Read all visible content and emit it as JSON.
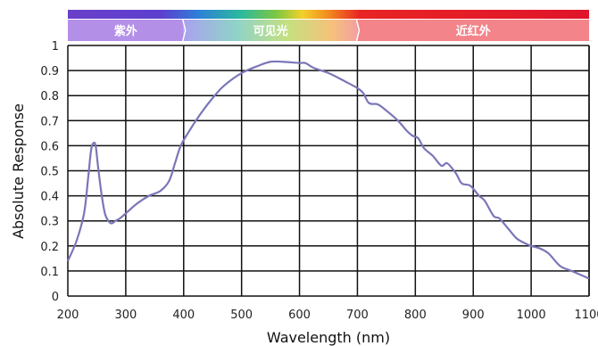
{
  "chart_data": {
    "type": "line",
    "xlabel": "Wavelength (nm)",
    "ylabel": "Absolute Response",
    "xlim": [
      200,
      1100
    ],
    "ylim": [
      0,
      1
    ],
    "x_ticks": [
      "200",
      "300",
      "400",
      "500",
      "600",
      "700",
      "800",
      "900",
      "1000",
      "1100"
    ],
    "y_ticks": [
      "0",
      "0.1",
      "0.2",
      "0.3",
      "0.4",
      "0.5",
      "0.6",
      "0.7",
      "0.8",
      "0.9",
      "1"
    ],
    "grid": true,
    "bands": [
      {
        "label": "紫外",
        "from": 200,
        "to": 400,
        "color": "#b48fe8"
      },
      {
        "label": "可见光",
        "from": 400,
        "to": 700,
        "color": "#9fd29a"
      },
      {
        "label": "近红外",
        "from": 700,
        "to": 1100,
        "color": "#f2848a"
      }
    ],
    "series": [
      {
        "color": "#7a76b8",
        "x": [
          200,
          215,
          228,
          235,
          240,
          244,
          248,
          252,
          258,
          264,
          270,
          276,
          282,
          290,
          300,
          320,
          340,
          360,
          375,
          385,
          395,
          410,
          430,
          450,
          470,
          500,
          530,
          550,
          570,
          600,
          610,
          625,
          650,
          680,
          700,
          710,
          720,
          735,
          750,
          770,
          785,
          795,
          805,
          815,
          830,
          845,
          855,
          870,
          880,
          895,
          910,
          920,
          935,
          945,
          960,
          975,
          990,
          1000,
          1015,
          1030,
          1050,
          1070,
          1090,
          1100
        ],
        "y": [
          0.14,
          0.22,
          0.33,
          0.47,
          0.58,
          0.61,
          0.6,
          0.52,
          0.41,
          0.33,
          0.3,
          0.29,
          0.3,
          0.31,
          0.33,
          0.37,
          0.4,
          0.42,
          0.46,
          0.53,
          0.6,
          0.66,
          0.73,
          0.79,
          0.84,
          0.89,
          0.92,
          0.935,
          0.935,
          0.93,
          0.93,
          0.91,
          0.89,
          0.855,
          0.83,
          0.81,
          0.77,
          0.765,
          0.74,
          0.7,
          0.66,
          0.64,
          0.63,
          0.59,
          0.56,
          0.52,
          0.53,
          0.49,
          0.45,
          0.44,
          0.4,
          0.38,
          0.32,
          0.31,
          0.27,
          0.23,
          0.21,
          0.2,
          0.19,
          0.17,
          0.12,
          0.1,
          0.08,
          0.07
        ]
      }
    ]
  }
}
